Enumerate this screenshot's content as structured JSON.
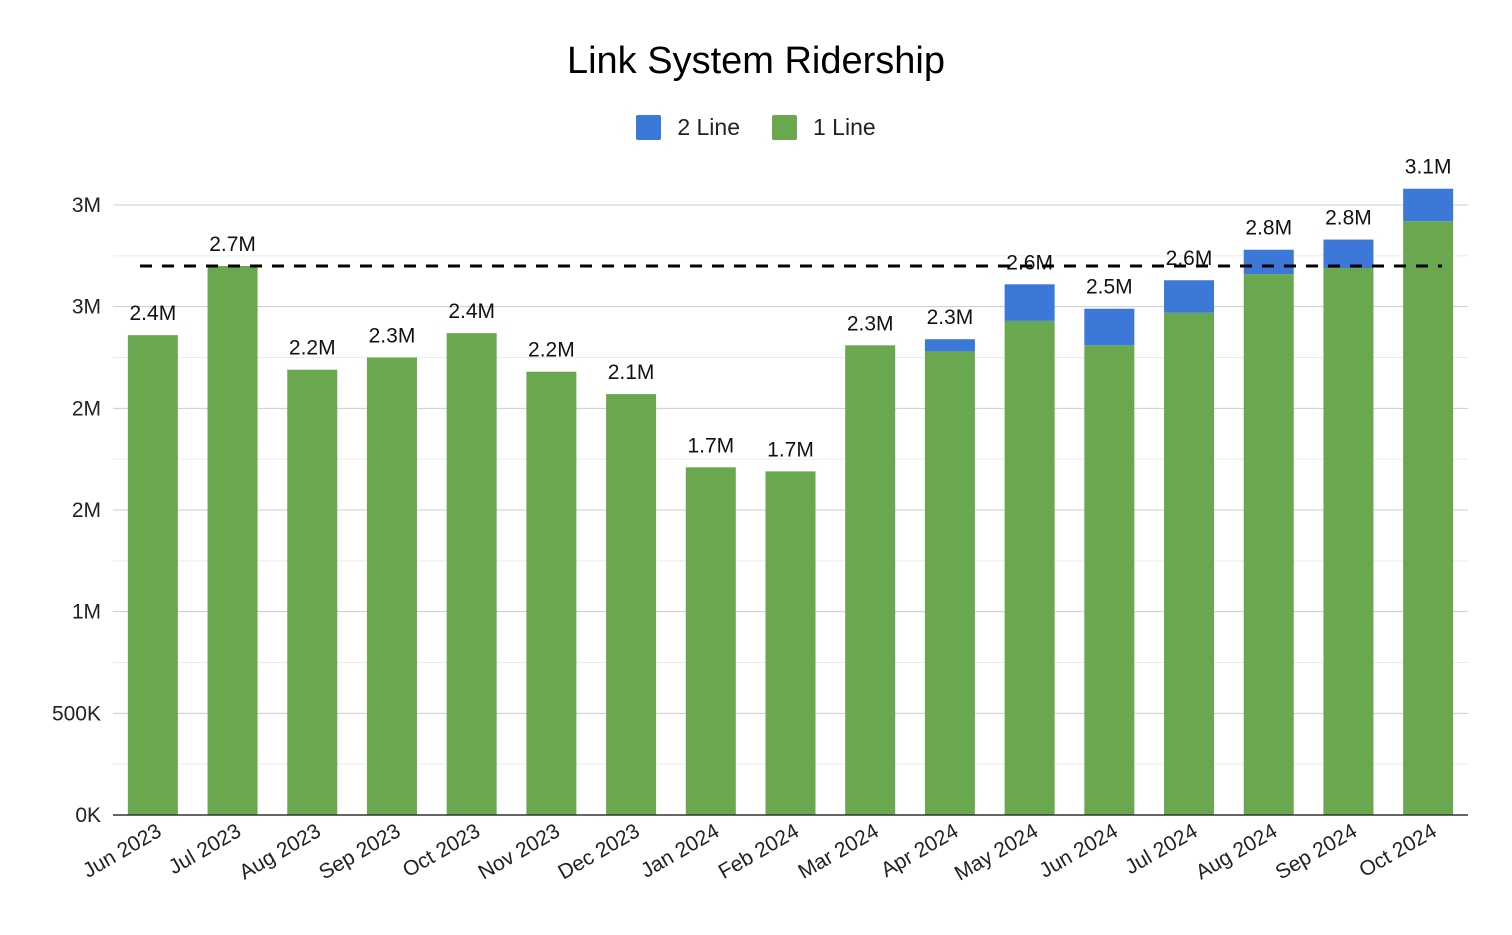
{
  "chart_data": {
    "type": "bar",
    "stacked": true,
    "title": "Link System Ridership",
    "xlabel": "",
    "ylabel": "",
    "categories": [
      "Jun 2023",
      "Jul 2023",
      "Aug 2023",
      "Sep 2023",
      "Oct 2023",
      "Nov 2023",
      "Dec 2023",
      "Jan 2024",
      "Feb 2024",
      "Mar 2024",
      "Apr 2024",
      "May 2024",
      "Jun 2024",
      "Jul 2024",
      "Aug 2024",
      "Sep 2024",
      "Oct 2024"
    ],
    "series": [
      {
        "name": "1 Line",
        "color": "#6aa84f",
        "values": [
          2360000,
          2700000,
          2190000,
          2250000,
          2370000,
          2180000,
          2070000,
          1710000,
          1690000,
          2310000,
          2280000,
          2430000,
          2310000,
          2470000,
          2660000,
          2690000,
          2920000
        ]
      },
      {
        "name": "2 Line",
        "color": "#3c78d8",
        "values": [
          0,
          0,
          0,
          0,
          0,
          0,
          0,
          0,
          0,
          0,
          60000,
          180000,
          180000,
          160000,
          120000,
          140000,
          160000
        ]
      }
    ],
    "totals_labels": [
      "2.4M",
      "2.7M",
      "2.2M",
      "2.3M",
      "2.4M",
      "2.2M",
      "2.1M",
      "1.7M",
      "1.7M",
      "2.3M",
      "2.3M",
      "2.6M",
      "2.5M",
      "2.6M",
      "2.8M",
      "2.8M",
      "3.1M"
    ],
    "y_ticks": [
      0,
      500000,
      1000000,
      1500000,
      2000000,
      2500000,
      3000000
    ],
    "y_tick_labels": [
      "0K",
      "500K",
      "1M",
      "2M",
      "2M",
      "3M",
      "3M"
    ],
    "ylim": [
      0,
      3000000
    ],
    "reference_line": {
      "value": 2700000,
      "style": "dashed",
      "color": "#000000"
    },
    "legend_position": "top",
    "grid": true
  }
}
